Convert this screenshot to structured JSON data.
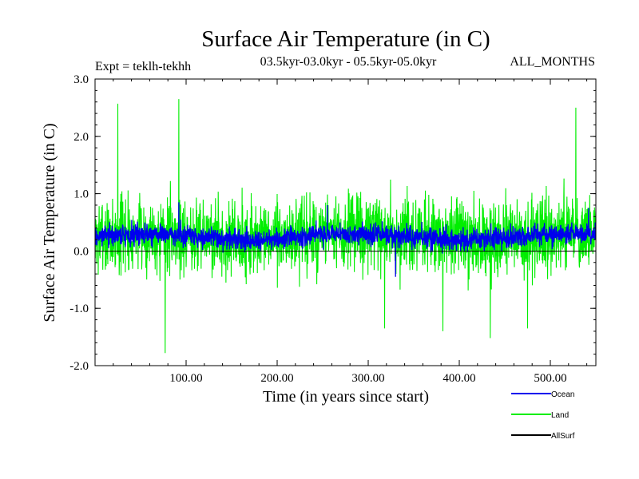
{
  "chart_data": {
    "type": "line",
    "title": "Surface Air Temperature (in C)",
    "subtitle_left": "Expt = teklh-tekhh",
    "subtitle_center": "03.5kyr-03.0kyr - 05.5kyr-05.0kyr",
    "subtitle_right": "ALL_MONTHS",
    "xlabel": "Time (in years since start)",
    "ylabel": "Surface Air Temperature (in C)",
    "xlim": [
      0,
      550
    ],
    "ylim": [
      -2.0,
      3.0
    ],
    "x_ticks": [
      100,
      200,
      300,
      400,
      500
    ],
    "x_tick_labels": [
      "100.00",
      "200.00",
      "300.00",
      "400.00",
      "500.00"
    ],
    "y_ticks": [
      -2.0,
      -1.0,
      0.0,
      1.0,
      2.0,
      3.0
    ],
    "y_tick_labels": [
      "-2.0",
      "-1.0",
      "0.0",
      "1.0",
      "2.0",
      "3.0"
    ],
    "x_step": 0.25,
    "series": [
      {
        "name": "Land",
        "color": "#00ee00",
        "mean": 0.25,
        "spread": 0.55,
        "seed": 7,
        "peaks": [
          [
            25,
            2.57
          ],
          [
            92,
            2.65
          ],
          [
            528,
            2.5
          ],
          [
            77,
            -1.78
          ],
          [
            434,
            -1.52
          ],
          [
            382,
            -1.4
          ],
          [
            475,
            -1.35
          ],
          [
            318,
            -1.35
          ]
        ]
      },
      {
        "name": "Ocean",
        "color": "#0000ee",
        "mean": 0.25,
        "spread": 0.16,
        "seed": 3,
        "peaks": [
          [
            92,
            0.85
          ],
          [
            255,
            0.8
          ],
          [
            542,
            0.75
          ],
          [
            330,
            -0.45
          ]
        ]
      },
      {
        "name": "AllSurf",
        "color": "#000000",
        "values": []
      }
    ],
    "legend_position": "bottom-right"
  }
}
